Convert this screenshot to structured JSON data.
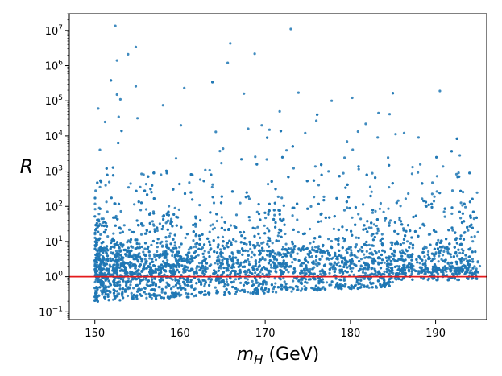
{
  "chart_data": {
    "type": "scatter",
    "title": "",
    "xlabel": "m_H (GeV)",
    "xlabel_parts": {
      "var": "m",
      "sub": "H",
      "unit": " (GeV)"
    },
    "ylabel": "R",
    "xlim": [
      147,
      196
    ],
    "ylim": [
      0.06,
      30000000
    ],
    "yscale": "log",
    "grid": false,
    "legend": "none",
    "x_ticks": [
      150,
      160,
      170,
      180,
      190
    ],
    "x_tick_labels": [
      "150",
      "160",
      "170",
      "180",
      "190"
    ],
    "y_ticks": [
      0.1,
      1,
      10,
      100,
      1000,
      10000,
      100000,
      1000000,
      10000000
    ],
    "y_tick_labels": [
      {
        "base": "10",
        "exp": "−1"
      },
      {
        "base": "10",
        "exp": "0"
      },
      {
        "base": "10",
        "exp": "1"
      },
      {
        "base": "10",
        "exp": "2"
      },
      {
        "base": "10",
        "exp": "3"
      },
      {
        "base": "10",
        "exp": "4"
      },
      {
        "base": "10",
        "exp": "5"
      },
      {
        "base": "10",
        "exp": "6"
      },
      {
        "base": "10",
        "exp": "7"
      }
    ],
    "reference_line": {
      "y": 1,
      "color": "#e41a1c"
    },
    "point_color": "#1f77b4",
    "series": [
      {
        "points": [
          [
            152.4,
            13500000
          ],
          [
            173.0,
            11000000
          ],
          [
            165.9,
            4300000
          ],
          [
            154.8,
            3400000
          ],
          [
            153.9,
            2100000
          ],
          [
            152.6,
            1400000
          ],
          [
            165.6,
            1200000
          ],
          [
            154.8,
            260000
          ],
          [
            160.5,
            230000
          ],
          [
            190.5,
            190000
          ],
          [
            152.6,
            150000
          ],
          [
            167.5,
            160000
          ],
          [
            173.9,
            170000
          ],
          [
            150.4,
            60000
          ],
          [
            153.0,
            110000
          ],
          [
            158.0,
            75000
          ],
          [
            171.7,
            50000
          ],
          [
            177.8,
            100000
          ],
          [
            183.3,
            45000
          ],
          [
            184.6,
            42000
          ],
          [
            155.0,
            32000
          ],
          [
            152.8,
            35000
          ],
          [
            169.6,
            20000
          ],
          [
            176.0,
            27000
          ],
          [
            181.8,
            22000
          ],
          [
            186.3,
            12000
          ],
          [
            188.0,
            9000
          ],
          [
            151.2,
            25000
          ],
          [
            160.1,
            20000
          ],
          [
            164.2,
            13000
          ],
          [
            168.0,
            16000
          ],
          [
            170.5,
            15000
          ],
          [
            174.7,
            12000
          ],
          [
            179.6,
            7000
          ],
          [
            183.2,
            9000
          ],
          [
            192.7,
            900
          ],
          [
            195.2,
            2
          ],
          [
            194.6,
            14
          ],
          [
            193.5,
            95
          ],
          [
            189.8,
            140
          ],
          [
            191.2,
            3
          ],
          [
            187.3,
            1300
          ],
          [
            191.0,
            70
          ],
          [
            188.5,
            30
          ],
          [
            192.3,
            18
          ],
          [
            190.2,
            9
          ],
          [
            193.9,
            6
          ]
        ]
      }
    ],
    "dense_cloud": {
      "x_range": [
        150,
        195
      ],
      "count": 5200,
      "core_median": 1.6,
      "note_only_for_rendering": false
    }
  }
}
